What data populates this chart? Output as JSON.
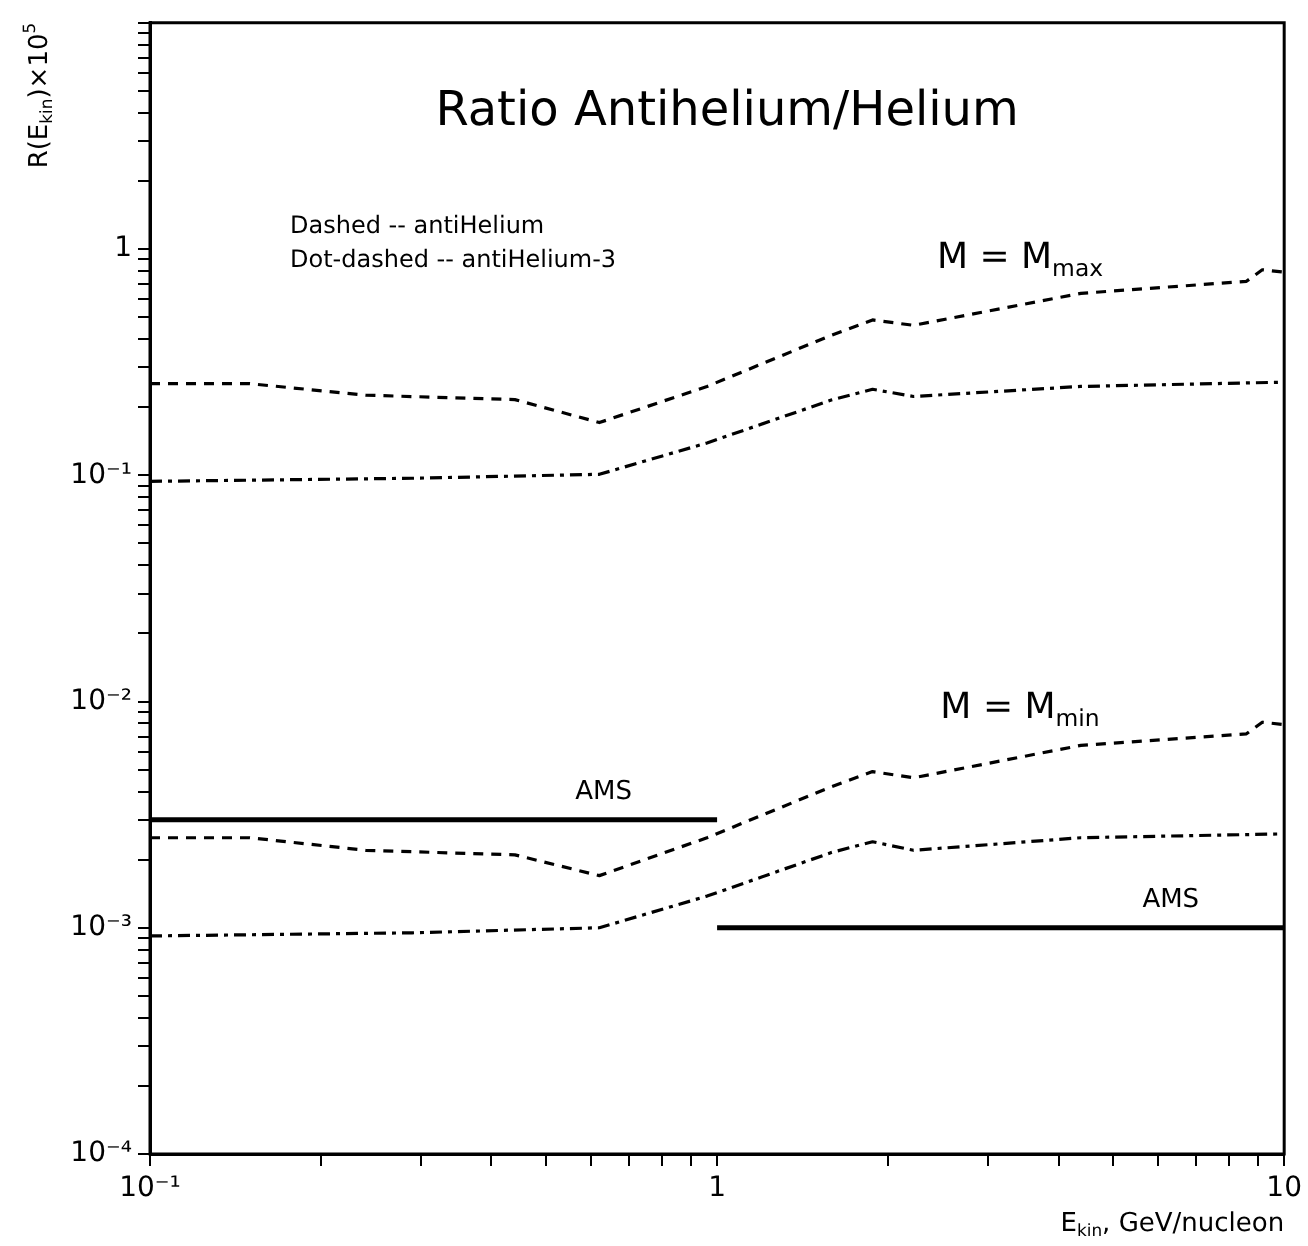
{
  "chart_data": {
    "type": "line",
    "title": "Ratio Antihelium/Helium",
    "xlabel": "E$_{kin}$, GeV/nucleon",
    "ylabel": "R(E$_{kin}$)×10$^{5}$",
    "log": "xy",
    "grid": false,
    "legend": false,
    "marker": "none",
    "xlim": [
      0.1,
      10
    ],
    "ylim": [
      0.0001,
      10
    ],
    "xticks": [
      {
        "value": 0.1,
        "label": "10⁻¹"
      },
      {
        "value": 0.2,
        "label": null
      },
      {
        "value": 0.3,
        "label": null
      },
      {
        "value": 0.4,
        "label": null
      },
      {
        "value": 0.5,
        "label": null
      },
      {
        "value": 0.6,
        "label": null
      },
      {
        "value": 0.7,
        "label": null
      },
      {
        "value": 0.8,
        "label": null
      },
      {
        "value": 0.9,
        "label": null
      },
      1,
      {
        "value": 2,
        "label": null
      },
      {
        "value": 3,
        "label": null
      },
      {
        "value": 4,
        "label": null
      },
      {
        "value": 5,
        "label": null
      },
      {
        "value": 6,
        "label": null
      },
      {
        "value": 7,
        "label": null
      },
      {
        "value": 8,
        "label": null
      },
      {
        "value": 9,
        "label": null
      },
      10
    ],
    "yticks": [
      {
        "value": 0.0001,
        "label": "10⁻⁴"
      },
      {
        "value": 0.0002,
        "label": null
      },
      {
        "value": 0.0003,
        "label": null
      },
      {
        "value": 0.0004,
        "label": null
      },
      {
        "value": 0.0005,
        "label": null
      },
      {
        "value": 0.0006,
        "label": null
      },
      {
        "value": 0.0007,
        "label": null
      },
      {
        "value": 0.0008,
        "label": null
      },
      {
        "value": 0.0009,
        "label": null
      },
      {
        "value": 0.001,
        "label": "10⁻³"
      },
      {
        "value": 0.002,
        "label": null
      },
      {
        "value": 0.003,
        "label": null
      },
      {
        "value": 0.004,
        "label": null
      },
      {
        "value": 0.005,
        "label": null
      },
      {
        "value": 0.006,
        "label": null
      },
      {
        "value": 0.007,
        "label": null
      },
      {
        "value": 0.008,
        "label": null
      },
      {
        "value": 0.009,
        "label": null
      },
      {
        "value": 0.01,
        "label": "10⁻²"
      },
      {
        "value": 0.02,
        "label": null
      },
      {
        "value": 0.03,
        "label": null
      },
      {
        "value": 0.04,
        "label": null
      },
      {
        "value": 0.05,
        "label": null
      },
      {
        "value": 0.06,
        "label": null
      },
      {
        "value": 0.07,
        "label": null
      },
      {
        "value": 0.08,
        "label": null
      },
      {
        "value": 0.09,
        "label": null
      },
      {
        "value": 0.1,
        "label": "10⁻¹"
      },
      {
        "value": 0.2,
        "label": null
      },
      {
        "value": 0.3,
        "label": null
      },
      {
        "value": 0.4,
        "label": null
      },
      {
        "value": 0.5,
        "label": null
      },
      {
        "value": 0.6,
        "label": null
      },
      {
        "value": 0.7,
        "label": null
      },
      {
        "value": 0.8,
        "label": null
      },
      {
        "value": 0.9,
        "label": null
      },
      1,
      {
        "value": 2,
        "label": null
      },
      {
        "value": 3,
        "label": null
      },
      {
        "value": 4,
        "label": null
      },
      {
        "value": 5,
        "label": null
      },
      {
        "value": 6,
        "label": null
      },
      {
        "value": 7,
        "label": null
      },
      {
        "value": 8,
        "label": null
      },
      {
        "value": 9,
        "label": null
      },
      {
        "value": 10,
        "label": null
      }
    ],
    "series": [
      {
        "color": "#000000",
        "line_style": "dashed",
        "x": [
          0.1,
          0.15,
          0.24,
          0.44,
          0.62,
          0.96,
          1.59,
          1.88,
          2.22,
          4.38,
          8.58,
          9.15,
          10
        ],
        "values": [
          0.254,
          0.254,
          0.226,
          0.216,
          0.171,
          0.247,
          0.416,
          0.486,
          0.46,
          0.637,
          0.72,
          0.81,
          0.79
        ]
      },
      {
        "color": "#000000",
        "line_style": "dashdot",
        "x": [
          0.1,
          0.29,
          0.62,
          0.96,
          1.59,
          1.88,
          2.22,
          4.38,
          10
        ],
        "values": [
          0.094,
          0.097,
          0.101,
          0.139,
          0.215,
          0.24,
          0.223,
          0.247,
          0.258
        ]
      },
      {
        "color": "#000000",
        "line_style": "dashed",
        "x": [
          0.1,
          0.15,
          0.24,
          0.44,
          0.62,
          0.96,
          1.59,
          1.88,
          2.22,
          4.38,
          8.58,
          9.15,
          10
        ],
        "values": [
          0.0025,
          0.0025,
          0.0022,
          0.0021,
          0.0017,
          0.0025,
          0.0042,
          0.0049,
          0.0046,
          0.0064,
          0.0072,
          0.0081,
          0.0079
        ]
      },
      {
        "color": "#000000",
        "line_style": "dashdot",
        "x": [
          0.1,
          0.29,
          0.62,
          0.96,
          1.59,
          1.88,
          2.22,
          4.38,
          10
        ],
        "values": [
          0.00092,
          0.00095,
          0.001,
          0.00138,
          0.00215,
          0.0024,
          0.0022,
          0.0025,
          0.0026
        ]
      },
      {
        "name": "AMS",
        "color": "#000000",
        "line_style": "solid",
        "x": [
          0.1,
          1
        ],
        "values": [
          0.003,
          0.003
        ]
      },
      {
        "name": "AMS",
        "color": "#000000",
        "line_style": "solid",
        "x": [
          1,
          10
        ],
        "values": [
          0.001,
          0.001
        ]
      }
    ],
    "annotations": [
      "Dashed -- antiHelium",
      "Dot-dashed -- antiHelium-3",
      "M = M$_{max}$",
      "M = M$_{min}$"
    ]
  }
}
